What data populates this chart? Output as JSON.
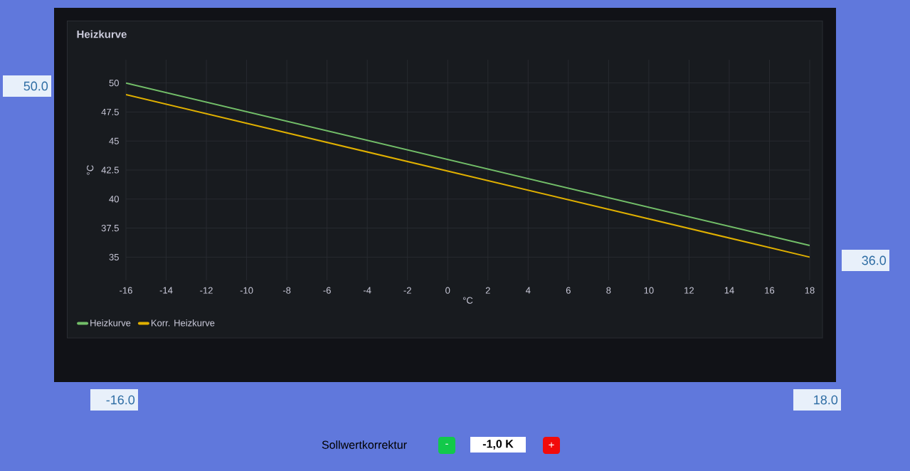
{
  "chart_data": {
    "type": "line",
    "title": "Heizkurve",
    "xlabel": "°C",
    "ylabel": "°C",
    "x": [
      -16,
      18
    ],
    "series": [
      {
        "name": "Heizkurve",
        "color": "#73bf69",
        "values": [
          50,
          36
        ]
      },
      {
        "name": "Korr. Heizkurve",
        "color": "#e0b000",
        "values": [
          49,
          35
        ]
      }
    ],
    "xlim": [
      -16,
      18
    ],
    "xticks": [
      -16,
      -14,
      -12,
      -10,
      -8,
      -6,
      -4,
      -2,
      0,
      2,
      4,
      6,
      8,
      10,
      12,
      14,
      16,
      18
    ],
    "ylim": [
      33,
      52
    ],
    "yticks": [
      35,
      37.5,
      40,
      42.5,
      45,
      47.5,
      50
    ],
    "grid": true,
    "legend": "bottom left",
    "annotations": [
      "50.0",
      "36.0",
      "-16.0",
      "18.0",
      "Sollwertkorrektur",
      "-",
      "-1,0 K",
      "+"
    ]
  }
}
